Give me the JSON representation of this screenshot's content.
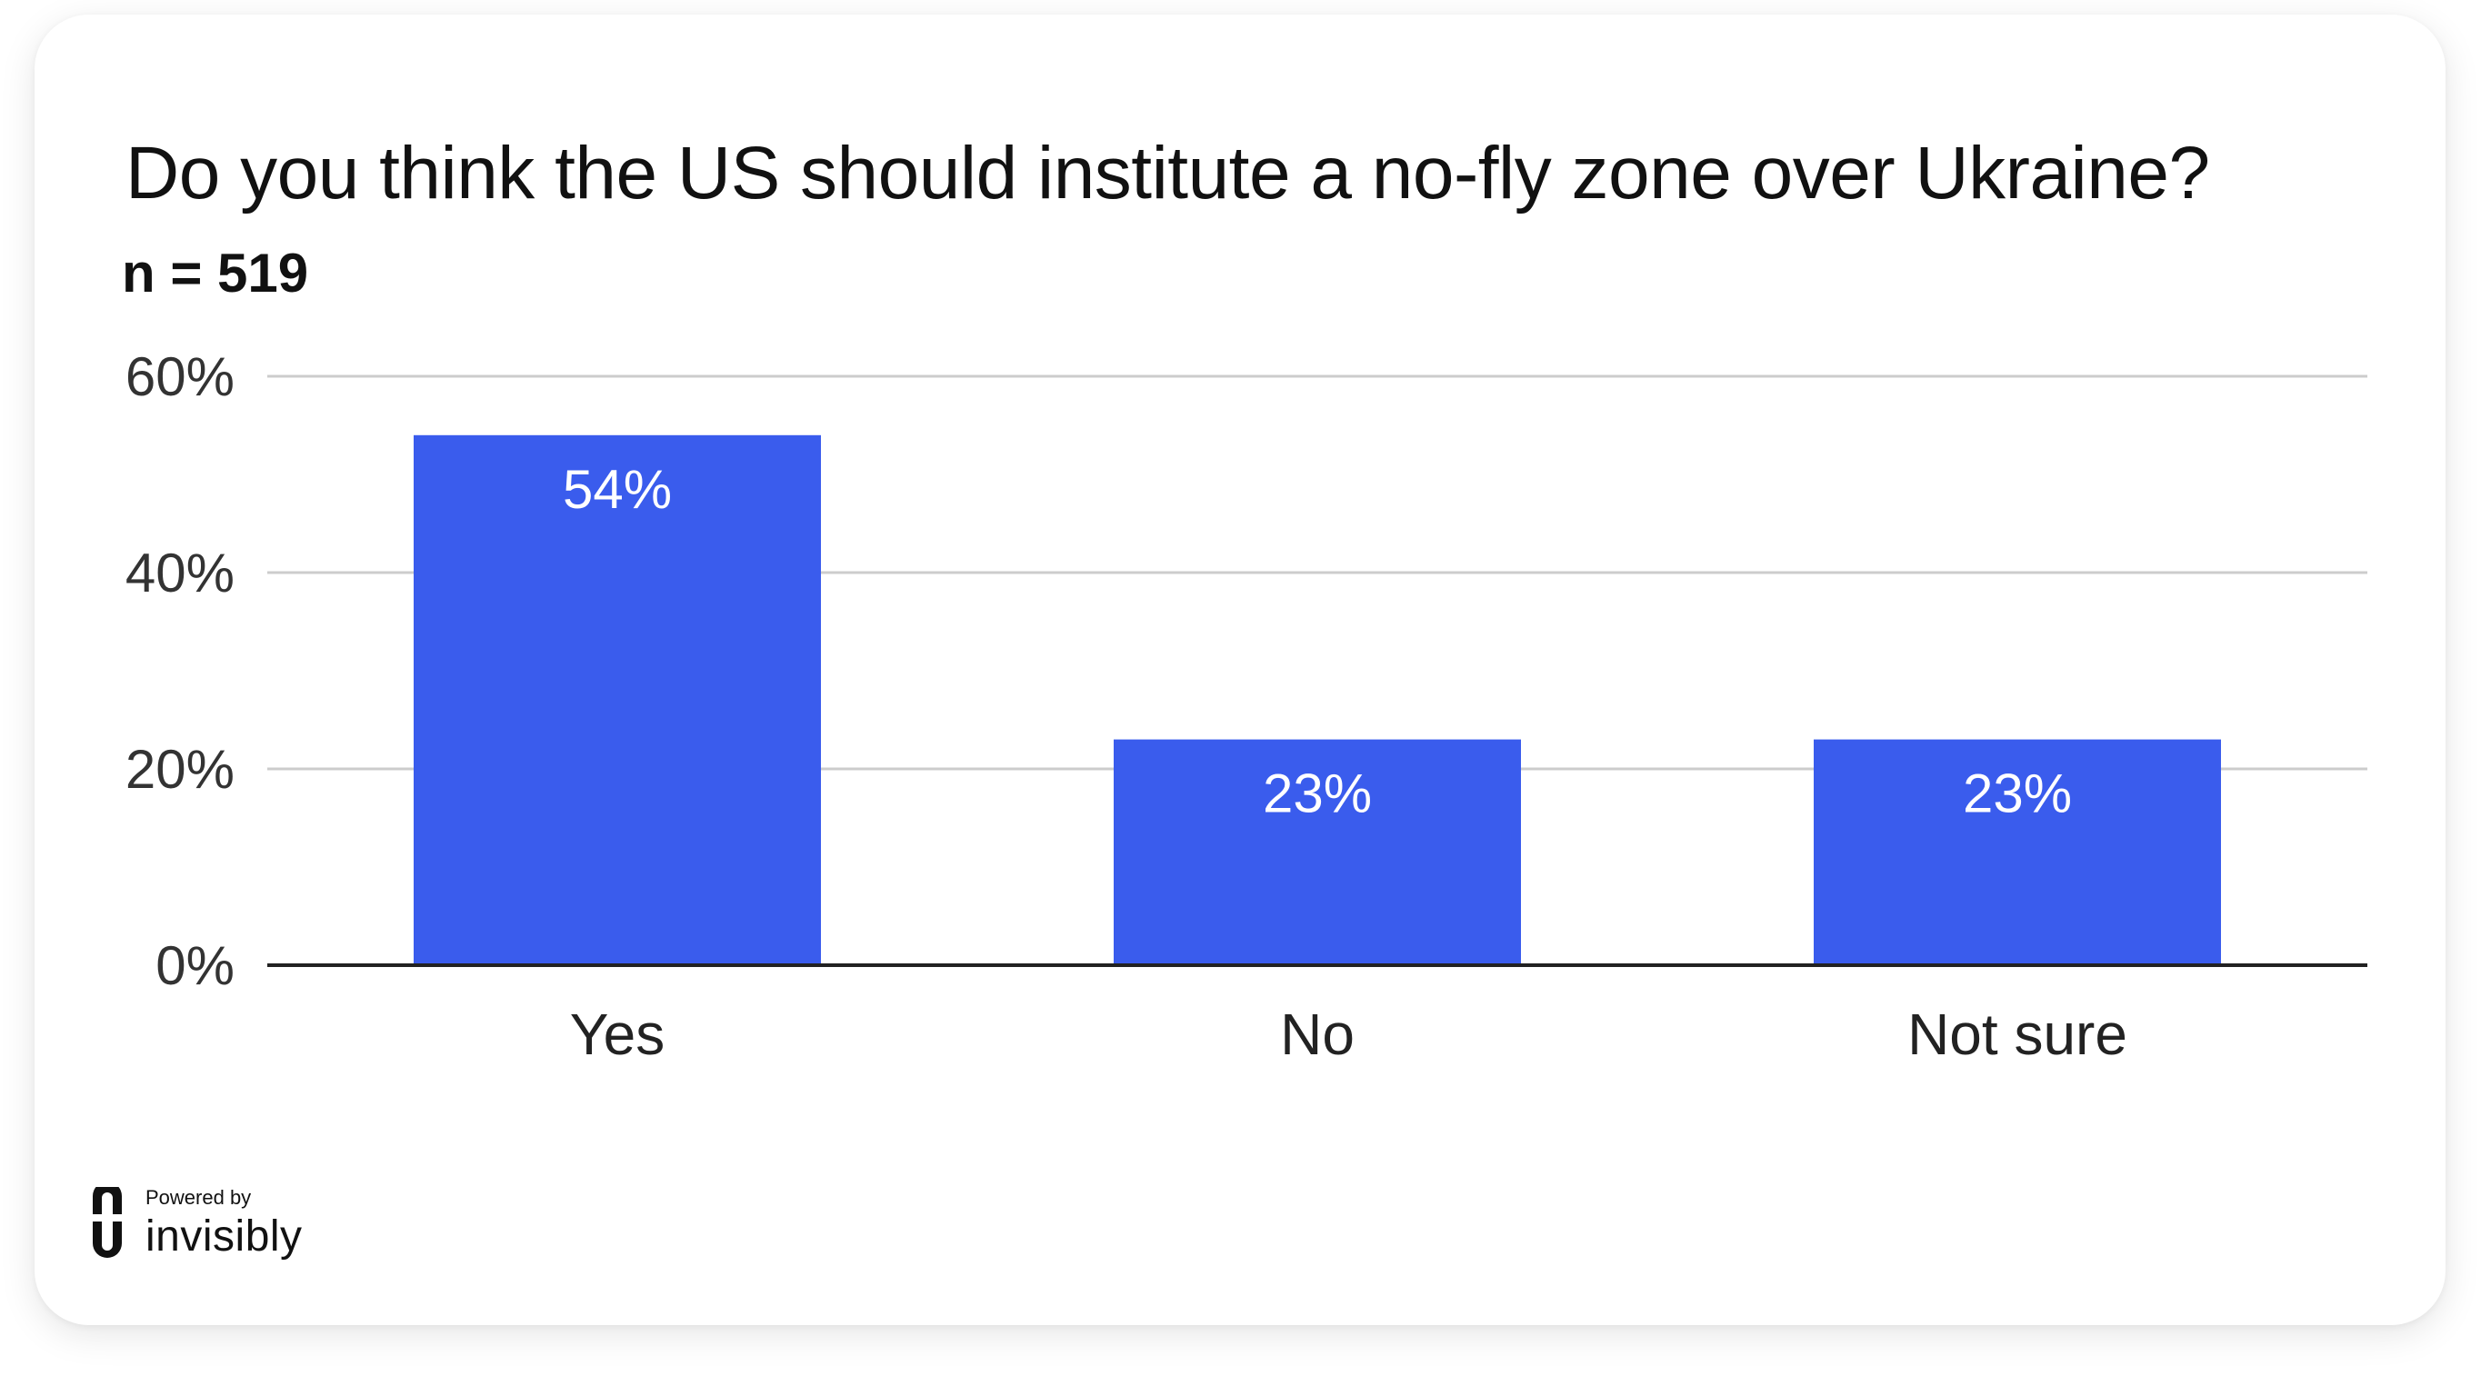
{
  "chart_data": {
    "type": "bar",
    "title": "Do you think the US should institute a no-fly zone over Ukraine?",
    "subtitle": "n = 519",
    "categories": [
      "Yes",
      "No",
      "Not sure"
    ],
    "values": [
      54,
      23,
      23
    ],
    "value_labels": [
      "54%",
      "23%",
      "23%"
    ],
    "yticks": [
      0,
      20,
      40,
      60
    ],
    "ytick_labels": [
      "0%",
      "20%",
      "40%",
      "60%"
    ],
    "ylim": [
      0,
      60
    ],
    "grid": true,
    "bar_color": "#3a5ced"
  },
  "footer": {
    "powered_by": "Powered by",
    "brand": "invisibly"
  }
}
